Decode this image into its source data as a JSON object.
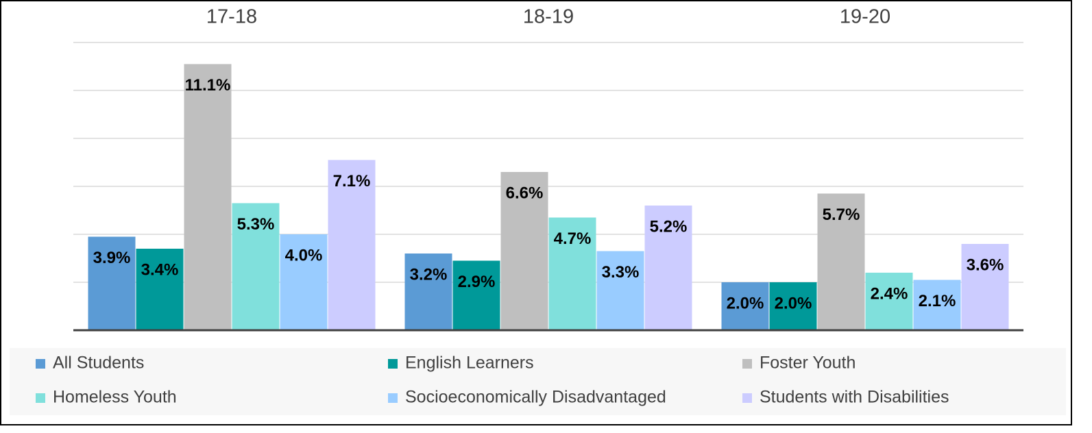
{
  "chart_data": {
    "type": "bar",
    "categories": [
      "17-18",
      "18-19",
      "19-20"
    ],
    "series": [
      {
        "name": "All Students",
        "color": "#5b9bd5",
        "values": [
          3.9,
          3.2,
          2.0
        ],
        "value_labels": [
          "3.9%",
          "3.2%",
          "2.0%"
        ]
      },
      {
        "name": "English Learners",
        "color": "#009999",
        "values": [
          3.4,
          2.9,
          2.0
        ],
        "value_labels": [
          "3.4%",
          "2.9%",
          "2.0%"
        ]
      },
      {
        "name": "Foster Youth",
        "color": "#bfbfbf",
        "values": [
          11.1,
          6.6,
          5.7
        ],
        "value_labels": [
          "11.1%",
          "6.6%",
          "5.7%"
        ]
      },
      {
        "name": "Homeless Youth",
        "color": "#80e0dc",
        "values": [
          5.3,
          4.7,
          2.4
        ],
        "value_labels": [
          "5.3%",
          "4.7%",
          "2.4%"
        ]
      },
      {
        "name": "Socioeconomically Disadvantaged",
        "color": "#99ccff",
        "values": [
          4.0,
          3.3,
          2.1
        ],
        "value_labels": [
          "4.0%",
          "3.3%",
          "2.1%"
        ]
      },
      {
        "name": "Students with Disabilities",
        "color": "#ccccff",
        "values": [
          7.1,
          5.2,
          3.6
        ],
        "value_labels": [
          "7.1%",
          "5.2%",
          "3.6%"
        ]
      }
    ],
    "ylim": [
      0,
      12
    ],
    "yticks": [
      0,
      2,
      4,
      6,
      8,
      10,
      12
    ],
    "grid": true,
    "legend": "bottom"
  }
}
